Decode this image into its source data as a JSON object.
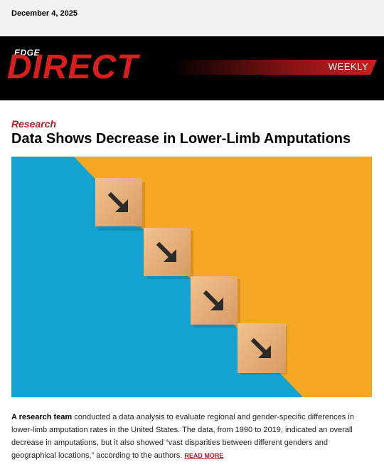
{
  "header": {
    "date": "December 4, 2025"
  },
  "banner": {
    "logo_top": "EDGE",
    "logo_main": "DIRECT",
    "edition": "WEEKLY",
    "accent_color": "#d81e1e"
  },
  "article": {
    "category": "Research",
    "headline": "Data Shows Decrease in Lower-Limb Amputations",
    "image": {
      "icon": "arrow-down-right-icon",
      "left_color": "#14a3d1",
      "right_color": "#f5a623",
      "block_color": "#e8b47f"
    },
    "lead_bold": "A research team",
    "body": " conducted a data analysis to evaluate regional and gender-specific differences in lower-limb amputation rates in the United States. The data, from 1990 to 2019, indicated an overall decrease in amputations, but it also showed “vast disparities between different genders and geographical locations,” according to the authors. ",
    "read_more": "READ MORE"
  }
}
